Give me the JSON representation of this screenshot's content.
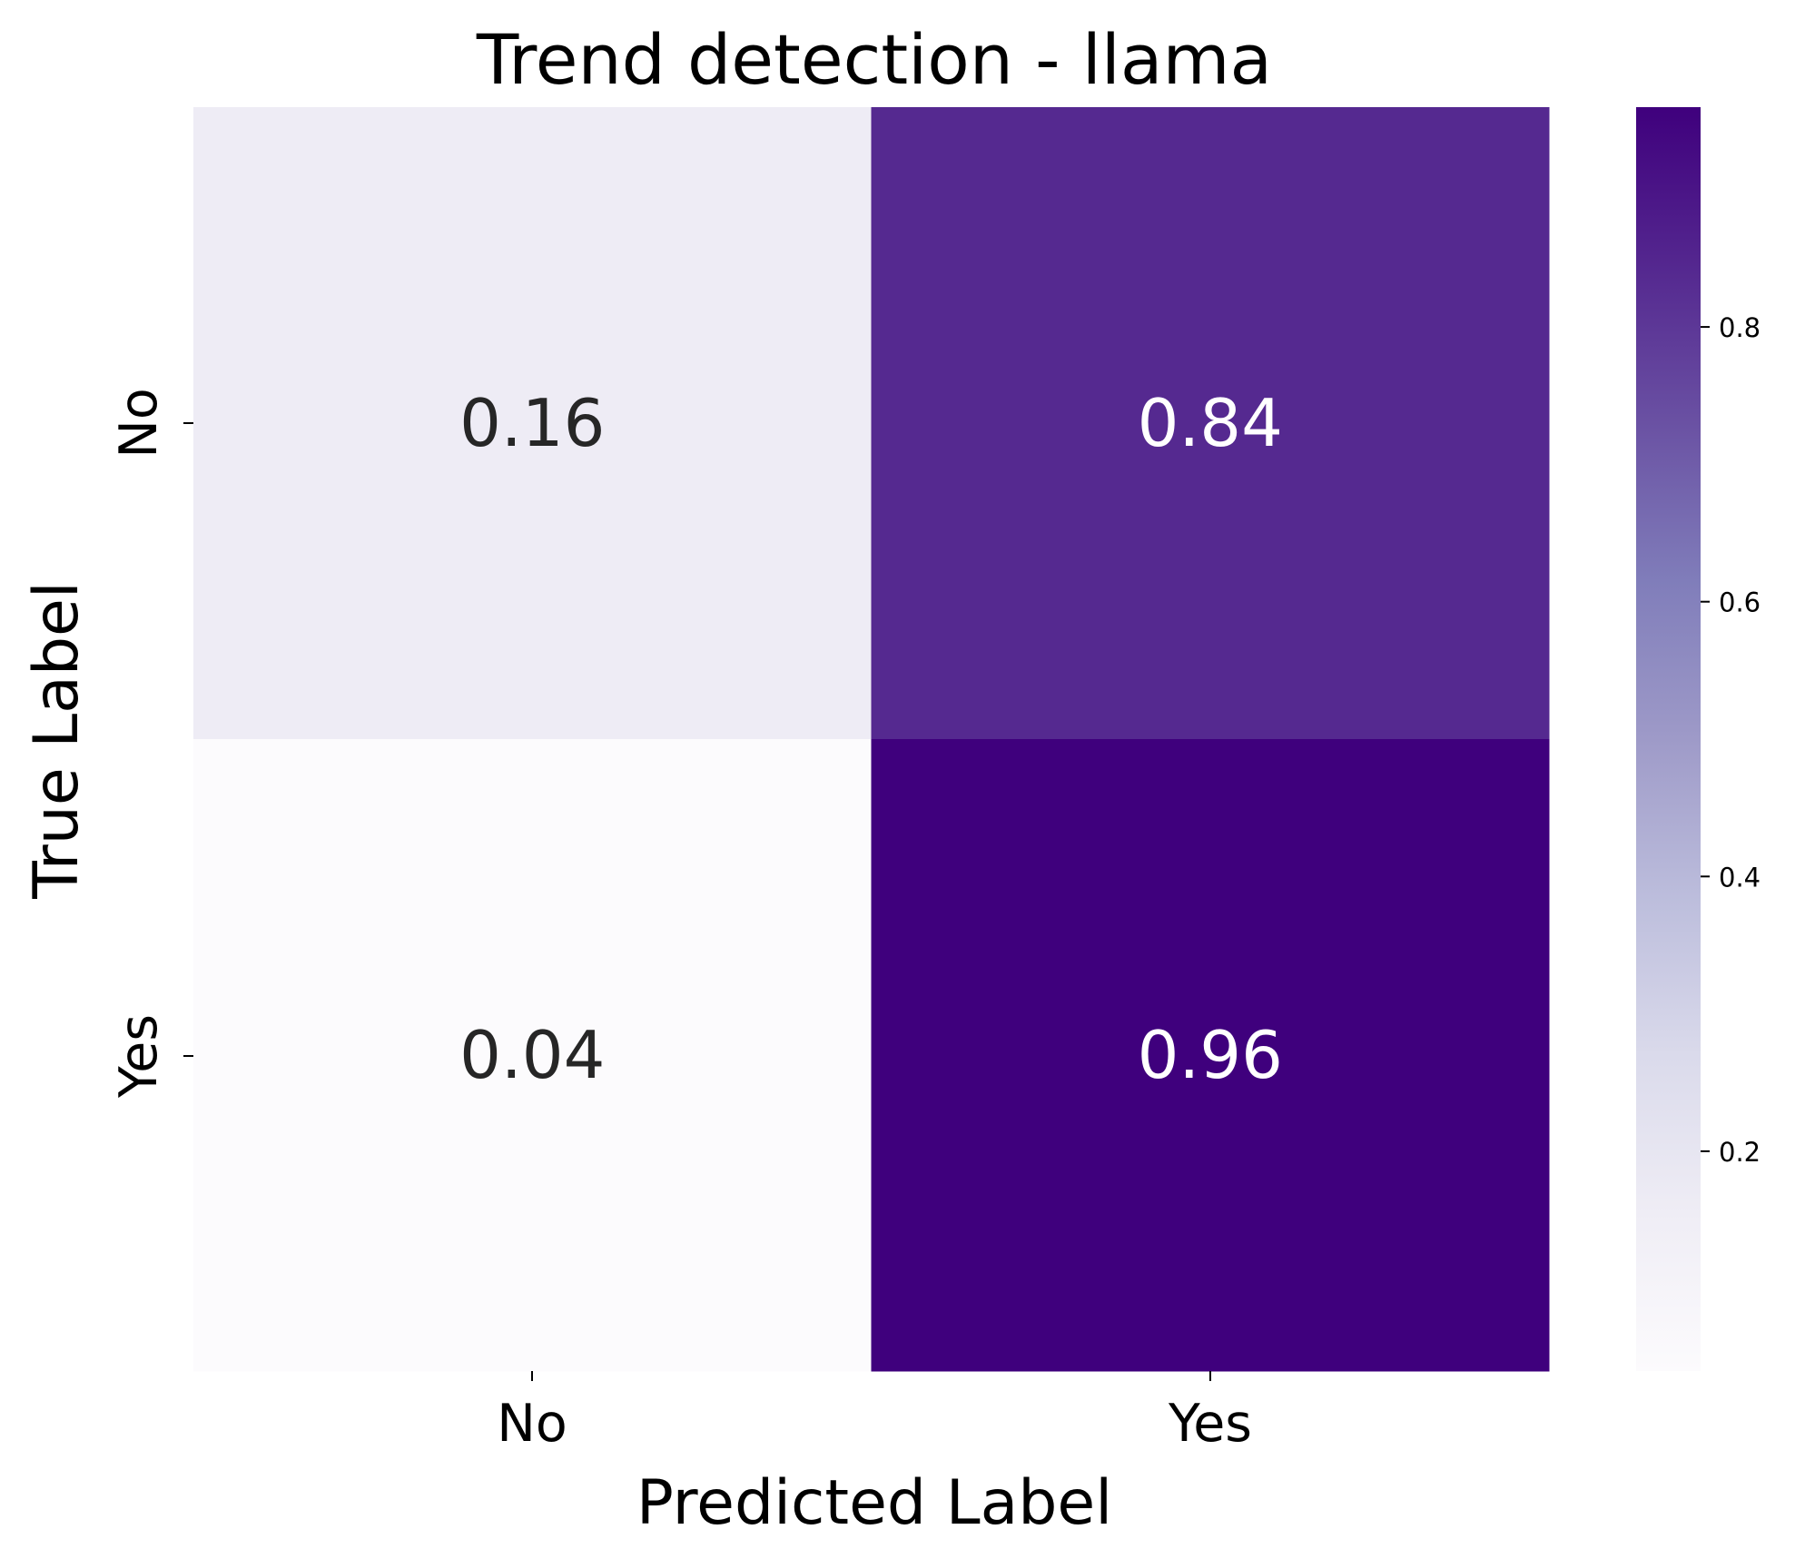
{
  "chart_data": {
    "type": "heatmap",
    "title": "Trend detection - llama",
    "xlabel": "Predicted Label",
    "ylabel": "True Label",
    "x_categories": [
      "No",
      "Yes"
    ],
    "y_categories": [
      "No",
      "Yes"
    ],
    "values": [
      [
        0.16,
        0.84
      ],
      [
        0.04,
        0.96
      ]
    ],
    "value_labels": [
      [
        "0.16",
        "0.84"
      ],
      [
        "0.04",
        "0.96"
      ]
    ],
    "colormap": "Purples",
    "colorbar": {
      "range": [
        0.04,
        0.96
      ],
      "ticks": [
        0.2,
        0.4,
        0.6,
        0.8
      ],
      "tick_labels": [
        "0.2",
        "0.4",
        "0.6",
        "0.8"
      ]
    }
  }
}
